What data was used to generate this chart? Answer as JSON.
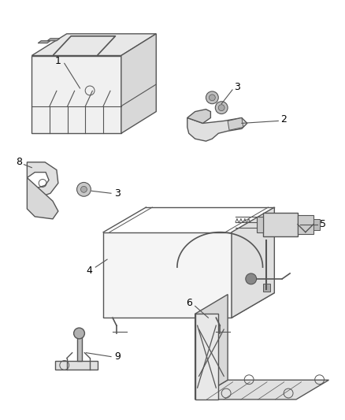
{
  "background_color": "#ffffff",
  "line_color": "#555555",
  "label_color": "#000000",
  "fig_width": 4.39,
  "fig_height": 5.33,
  "dpi": 100
}
